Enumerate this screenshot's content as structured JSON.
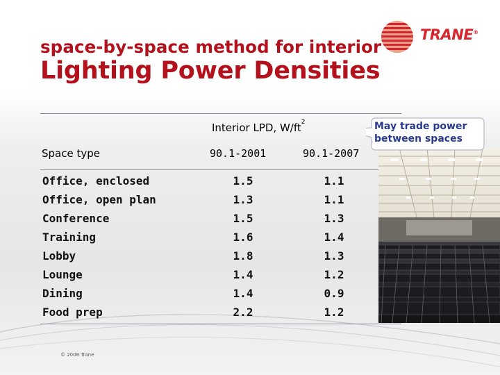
{
  "title": {
    "line1": "space-by-space method for interior",
    "line2": "Lighting Power Densities"
  },
  "logo": {
    "text": "TRANE",
    "registered_mark": "®"
  },
  "callout": {
    "text_line1": "May trade power",
    "text_line2": "between spaces"
  },
  "table": {
    "group_header": "Interior LPD, W/ft",
    "group_header_sup": "2",
    "col_space": "Space type",
    "col_2001": "90.1-2001",
    "col_2007": "90.1-2007",
    "rows": [
      {
        "space": "Office, enclosed",
        "v2001": "1.5",
        "v2007": "1.1"
      },
      {
        "space": "Office, open plan",
        "v2001": "1.3",
        "v2007": "1.1"
      },
      {
        "space": "Conference",
        "v2001": "1.5",
        "v2007": "1.3"
      },
      {
        "space": "Training",
        "v2001": "1.6",
        "v2007": "1.4"
      },
      {
        "space": "Lobby",
        "v2001": "1.8",
        "v2007": "1.3"
      },
      {
        "space": "Lounge",
        "v2001": "1.4",
        "v2007": "1.2"
      },
      {
        "space": "Dining",
        "v2001": "1.4",
        "v2007": "0.9"
      },
      {
        "space": "Food prep",
        "v2001": "2.2",
        "v2007": "1.2"
      }
    ]
  },
  "footer": {
    "copyright": "© 2008 Trane"
  },
  "colors": {
    "title_red": "#b3121d",
    "logo_red": "#d4272e",
    "callout_blue": "#2a3a8c"
  }
}
